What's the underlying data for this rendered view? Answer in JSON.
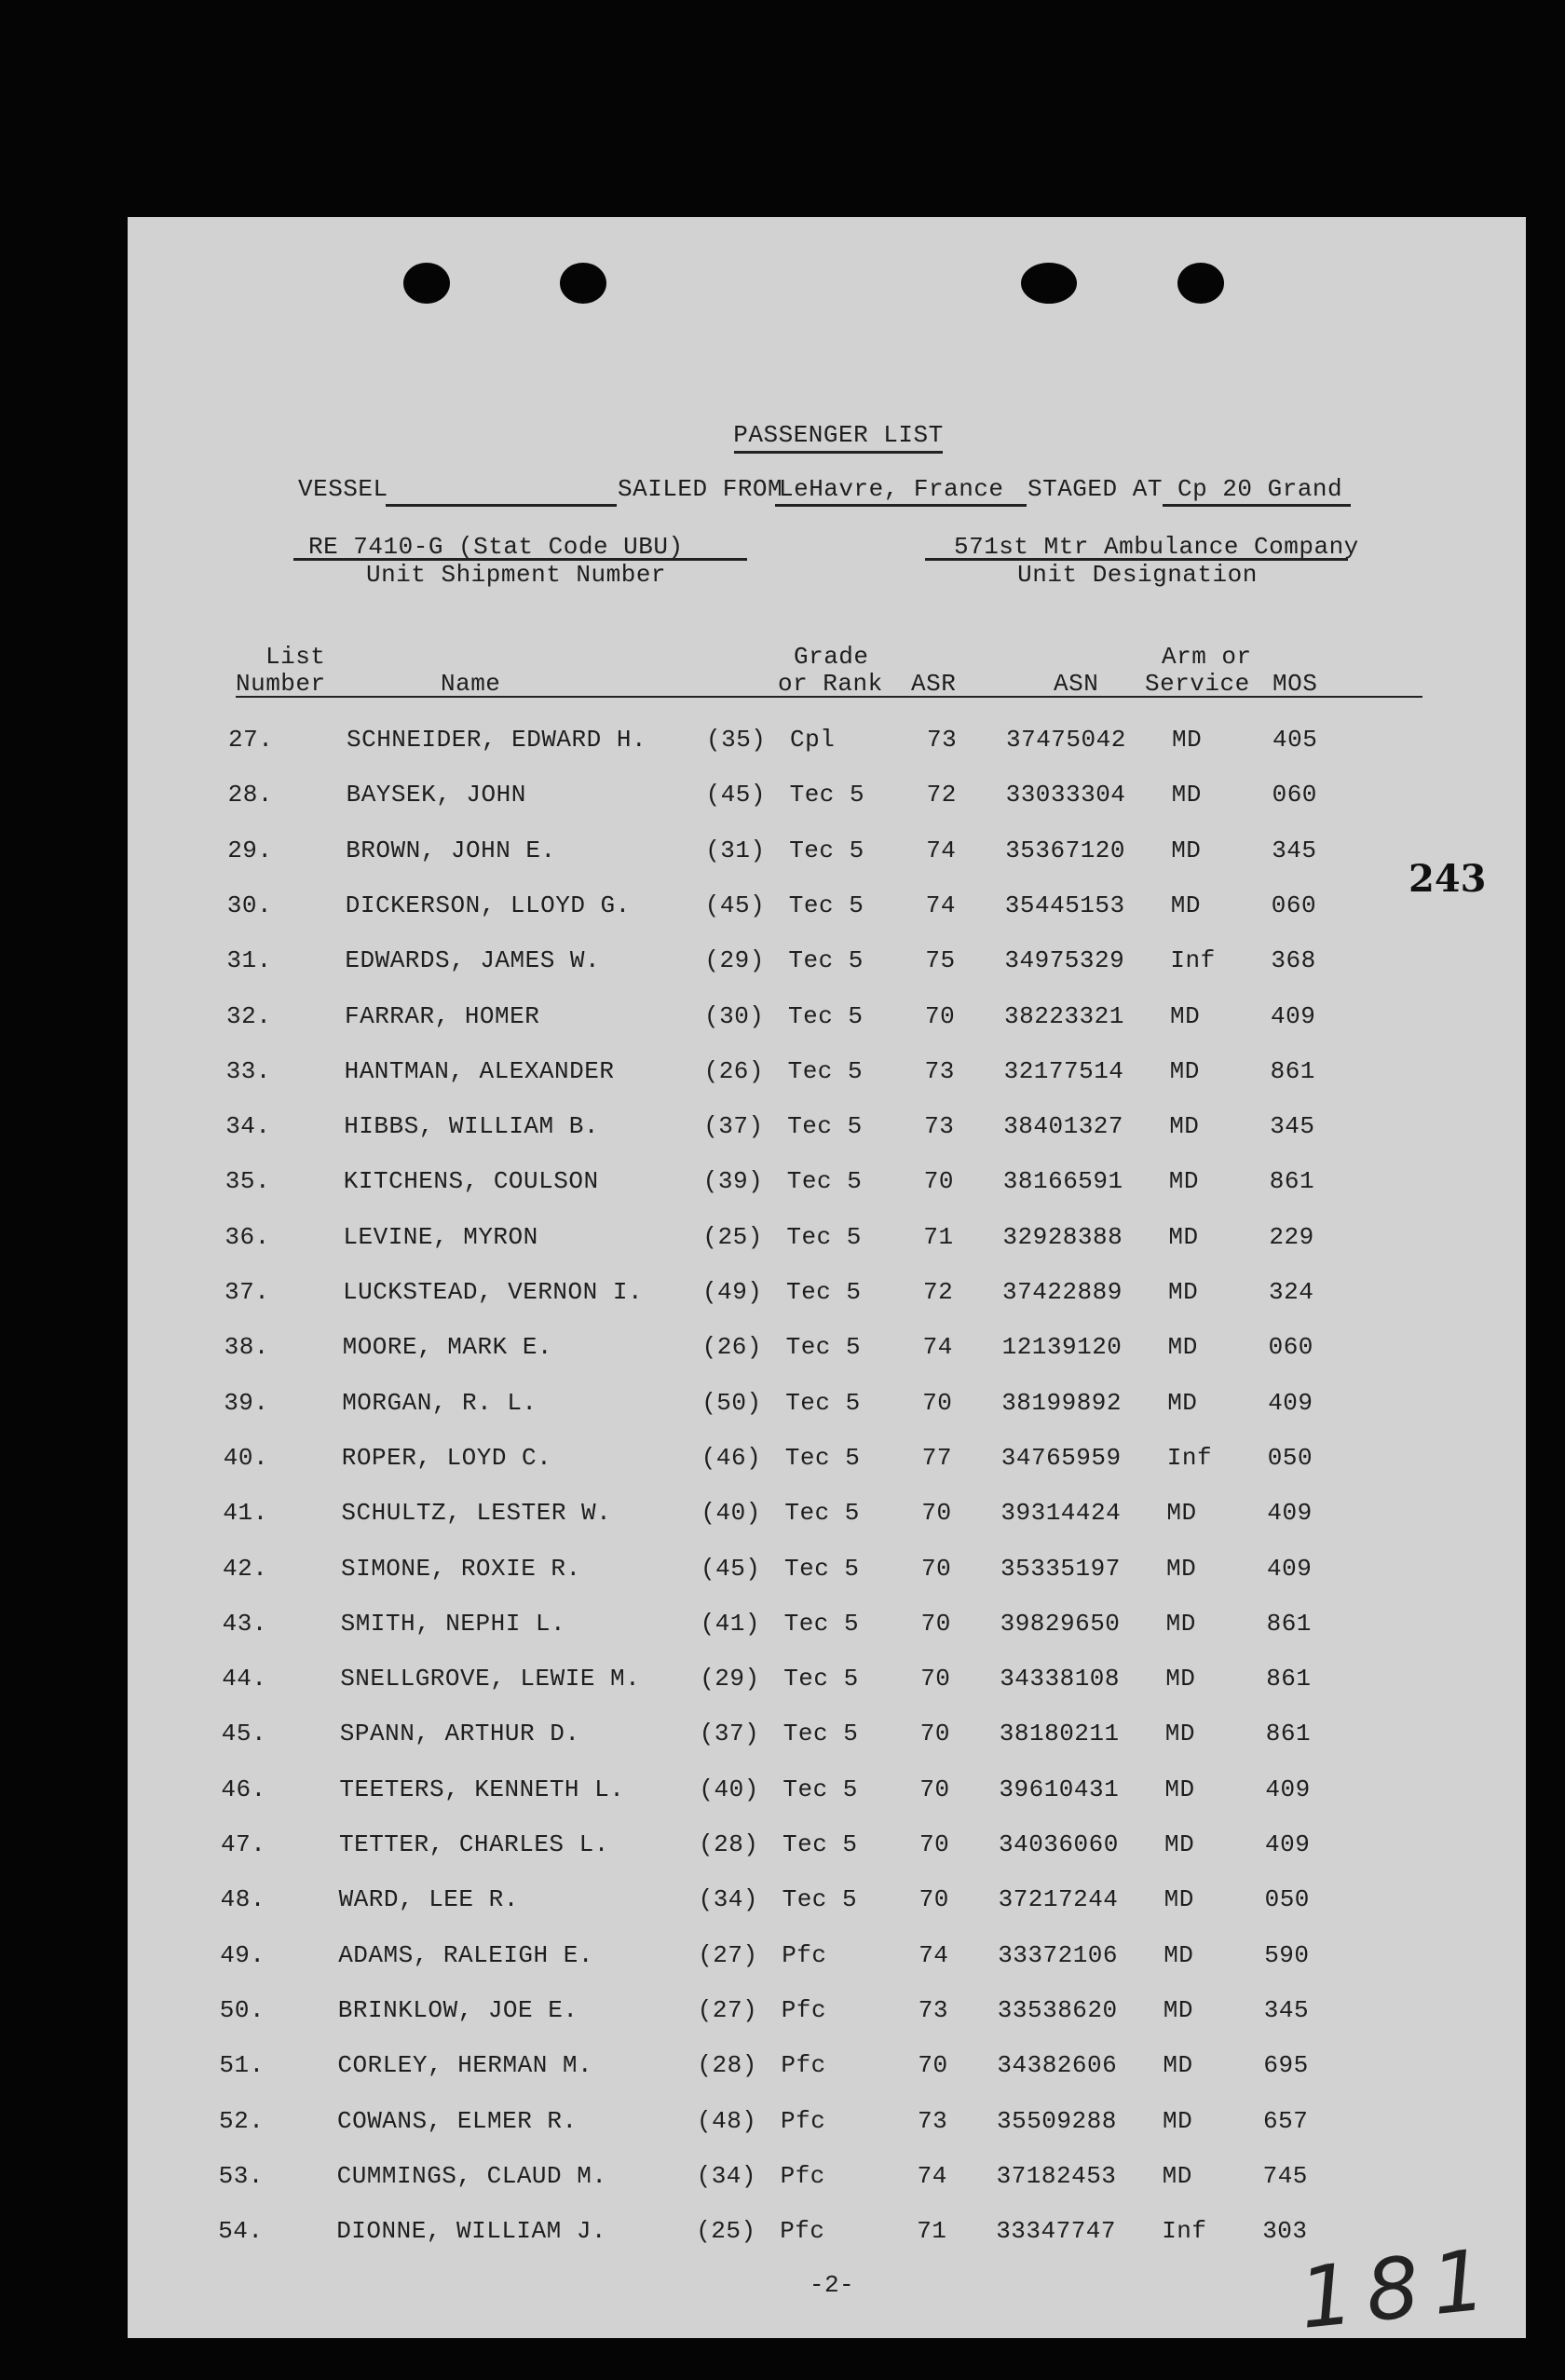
{
  "title": "PASSENGER LIST",
  "vessel_label": "VESSEL",
  "vessel_value": "",
  "sailed_from_label": "SAILED FROM",
  "sailed_from_value": "LeHavre, France",
  "staged_at_label": "STAGED AT",
  "staged_at_value": "Cp 20 Grand",
  "unit_shipment_number_value": "RE 7410-G (Stat Code UBU)",
  "unit_shipment_number_label": "Unit Shipment Number",
  "unit_designation_value": "571st Mtr Ambulance Company",
  "unit_designation_label": "Unit Designation",
  "columns": {
    "list_line1": "List",
    "list_line2": "Number",
    "name": "Name",
    "grade_line1": "Grade",
    "grade_line2": "or Rank",
    "asr": "ASR",
    "asn": "ASN",
    "arm_line1": "Arm or",
    "arm_line2": "Service",
    "mos": "MOS"
  },
  "rows": [
    {
      "num": "27.",
      "name": "SCHNEIDER, EDWARD H.",
      "age": "(35)",
      "grade": "Cpl",
      "asr": "73",
      "asn": "37475042",
      "arm": "MD",
      "mos": "405"
    },
    {
      "num": "28.",
      "name": "BAYSEK, JOHN",
      "age": "(45)",
      "grade": "Tec 5",
      "asr": "72",
      "asn": "33033304",
      "arm": "MD",
      "mos": "060"
    },
    {
      "num": "29.",
      "name": "BROWN, JOHN E.",
      "age": "(31)",
      "grade": "Tec 5",
      "asr": "74",
      "asn": "35367120",
      "arm": "MD",
      "mos": "345"
    },
    {
      "num": "30.",
      "name": "DICKERSON, LLOYD G.",
      "age": "(45)",
      "grade": "Tec 5",
      "asr": "74",
      "asn": "35445153",
      "arm": "MD",
      "mos": "060"
    },
    {
      "num": "31.",
      "name": "EDWARDS, JAMES W.",
      "age": "(29)",
      "grade": "Tec 5",
      "asr": "75",
      "asn": "34975329",
      "arm": "Inf",
      "mos": "368"
    },
    {
      "num": "32.",
      "name": "FARRAR, HOMER",
      "age": "(30)",
      "grade": "Tec 5",
      "asr": "70",
      "asn": "38223321",
      "arm": "MD",
      "mos": "409"
    },
    {
      "num": "33.",
      "name": "HANTMAN, ALEXANDER",
      "age": "(26)",
      "grade": "Tec 5",
      "asr": "73",
      "asn": "32177514",
      "arm": "MD",
      "mos": "861"
    },
    {
      "num": "34.",
      "name": "HIBBS, WILLIAM B.",
      "age": "(37)",
      "grade": "Tec 5",
      "asr": "73",
      "asn": "38401327",
      "arm": "MD",
      "mos": "345"
    },
    {
      "num": "35.",
      "name": "KITCHENS, COULSON",
      "age": "(39)",
      "grade": "Tec 5",
      "asr": "70",
      "asn": "38166591",
      "arm": "MD",
      "mos": "861"
    },
    {
      "num": "36.",
      "name": "LEVINE, MYRON",
      "age": "(25)",
      "grade": "Tec 5",
      "asr": "71",
      "asn": "32928388",
      "arm": "MD",
      "mos": "229"
    },
    {
      "num": "37.",
      "name": "LUCKSTEAD, VERNON I.",
      "age": "(49)",
      "grade": "Tec 5",
      "asr": "72",
      "asn": "37422889",
      "arm": "MD",
      "mos": "324"
    },
    {
      "num": "38.",
      "name": "MOORE, MARK E.",
      "age": "(26)",
      "grade": "Tec 5",
      "asr": "74",
      "asn": "12139120",
      "arm": "MD",
      "mos": "060"
    },
    {
      "num": "39.",
      "name": "MORGAN, R. L.",
      "age": "(50)",
      "grade": "Tec 5",
      "asr": "70",
      "asn": "38199892",
      "arm": "MD",
      "mos": "409"
    },
    {
      "num": "40.",
      "name": "ROPER, LOYD C.",
      "age": "(46)",
      "grade": "Tec 5",
      "asr": "77",
      "asn": "34765959",
      "arm": "Inf",
      "mos": "050"
    },
    {
      "num": "41.",
      "name": "SCHULTZ, LESTER W.",
      "age": "(40)",
      "grade": "Tec 5",
      "asr": "70",
      "asn": "39314424",
      "arm": "MD",
      "mos": "409"
    },
    {
      "num": "42.",
      "name": "SIMONE, ROXIE R.",
      "age": "(45)",
      "grade": "Tec 5",
      "asr": "70",
      "asn": "35335197",
      "arm": "MD",
      "mos": "409"
    },
    {
      "num": "43.",
      "name": "SMITH, NEPHI L.",
      "age": "(41)",
      "grade": "Tec 5",
      "asr": "70",
      "asn": "39829650",
      "arm": "MD",
      "mos": "861"
    },
    {
      "num": "44.",
      "name": "SNELLGROVE, LEWIE M.",
      "age": "(29)",
      "grade": "Tec 5",
      "asr": "70",
      "asn": "34338108",
      "arm": "MD",
      "mos": "861"
    },
    {
      "num": "45.",
      "name": "SPANN, ARTHUR D.",
      "age": "(37)",
      "grade": "Tec 5",
      "asr": "70",
      "asn": "38180211",
      "arm": "MD",
      "mos": "861"
    },
    {
      "num": "46.",
      "name": "TEETERS, KENNETH L.",
      "age": "(40)",
      "grade": "Tec 5",
      "asr": "70",
      "asn": "39610431",
      "arm": "MD",
      "mos": "409"
    },
    {
      "num": "47.",
      "name": "TETTER, CHARLES L.",
      "age": "(28)",
      "grade": "Tec 5",
      "asr": "70",
      "asn": "34036060",
      "arm": "MD",
      "mos": "409"
    },
    {
      "num": "48.",
      "name": "WARD, LEE R.",
      "age": "(34)",
      "grade": "Tec 5",
      "asr": "70",
      "asn": "37217244",
      "arm": "MD",
      "mos": "050"
    },
    {
      "num": "49.",
      "name": "ADAMS, RALEIGH E.",
      "age": "(27)",
      "grade": "Pfc",
      "asr": "74",
      "asn": "33372106",
      "arm": "MD",
      "mos": "590"
    },
    {
      "num": "50.",
      "name": "BRINKLOW, JOE E.",
      "age": "(27)",
      "grade": "Pfc",
      "asr": "73",
      "asn": "33538620",
      "arm": "MD",
      "mos": "345"
    },
    {
      "num": "51.",
      "name": "CORLEY, HERMAN M.",
      "age": "(28)",
      "grade": "Pfc",
      "asr": "70",
      "asn": "34382606",
      "arm": "MD",
      "mos": "695"
    },
    {
      "num": "52.",
      "name": "COWANS, ELMER R.",
      "age": "(48)",
      "grade": "Pfc",
      "asr": "73",
      "asn": "35509288",
      "arm": "MD",
      "mos": "657"
    },
    {
      "num": "53.",
      "name": "CUMMINGS, CLAUD M.",
      "age": "(34)",
      "grade": "Pfc",
      "asr": "74",
      "asn": "37182453",
      "arm": "MD",
      "mos": "745"
    },
    {
      "num": "54.",
      "name": "DIONNE, WILLIAM J.",
      "age": "(25)",
      "grade": "Pfc",
      "asr": "71",
      "asn": "33347747",
      "arm": "Inf",
      "mos": "303"
    }
  ],
  "page_number": "-2-",
  "stamp_number": "243",
  "handwritten_number": "181"
}
